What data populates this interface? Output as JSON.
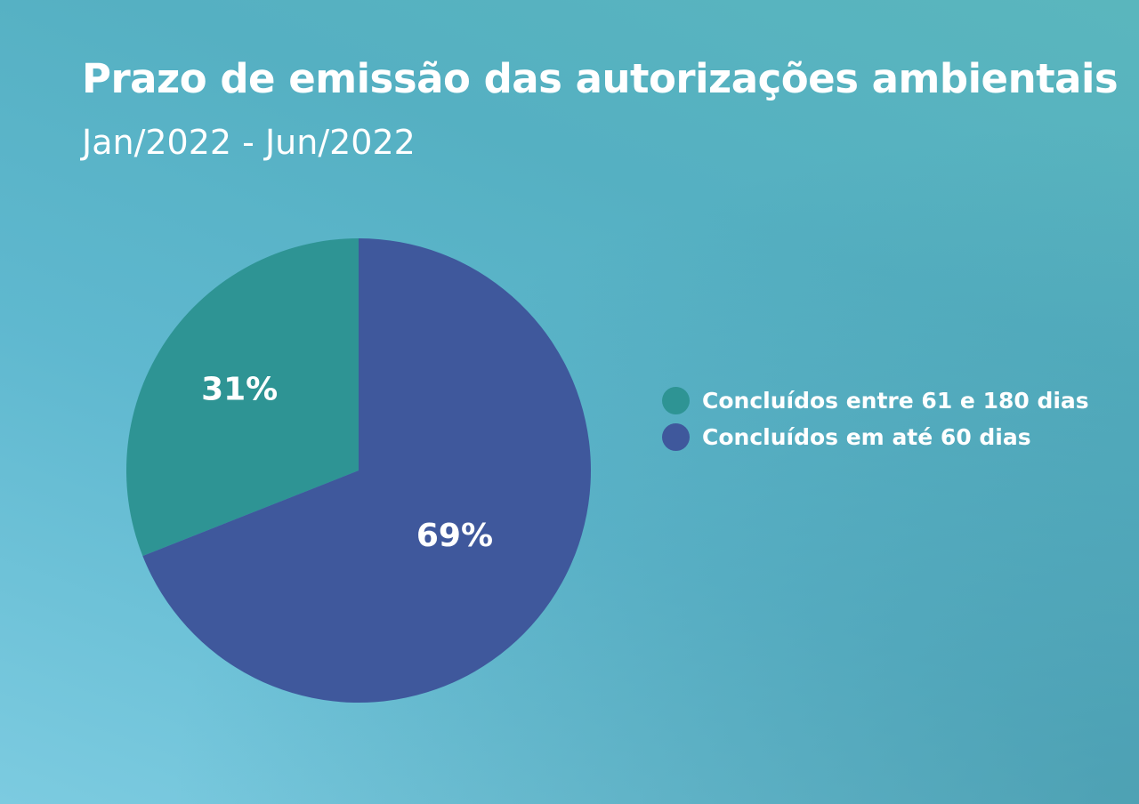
{
  "chart_data": {
    "type": "pie",
    "title": "Prazo de emissão das autorizações ambientais",
    "subtitle": "Jan/2022 - Jun/2022",
    "legend_position": "right",
    "slices": [
      {
        "label": "Concluídos entre 61 e 180 dias",
        "value": 31,
        "value_label": "31%",
        "color": "#2e9494"
      },
      {
        "label": "Concluídos em até 60 dias",
        "value": 69,
        "value_label": "69%",
        "color": "#3f589c"
      }
    ]
  },
  "colors": {
    "background_top": "#5ab6bd",
    "background_bottom": "#7ccbe0",
    "text": "#ffffff"
  }
}
